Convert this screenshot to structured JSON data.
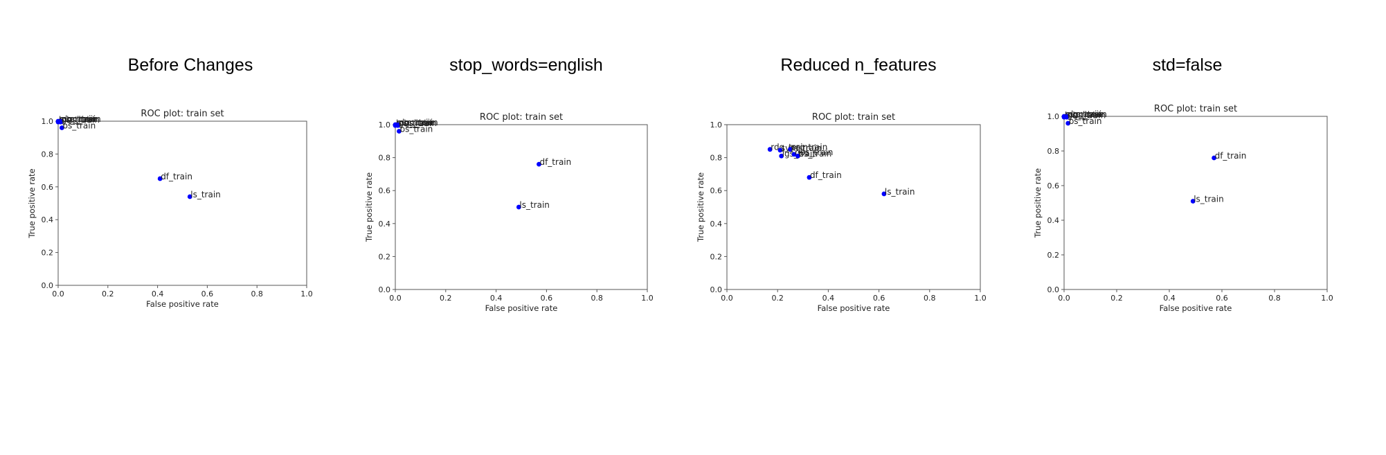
{
  "page": {
    "headings": [
      "Before Changes",
      "stop_words=english",
      "Reduced n_features",
      "std=false"
    ]
  },
  "chart_data": [
    {
      "type": "scatter",
      "heading": "Before Changes",
      "title": "ROC plot: train set",
      "xlabel": "False positive rate",
      "ylabel": "True positive rate",
      "xlim": [
        0,
        1
      ],
      "ylim": [
        0,
        1
      ],
      "xticks": [
        "0.0",
        "0.2",
        "0.4",
        "0.6",
        "0.8",
        "1.0"
      ],
      "yticks": [
        "0.0",
        "0.2",
        "0.4",
        "0.6",
        "0.8",
        "1.0"
      ],
      "grid": false,
      "marker_color": "#0000ff",
      "points": [
        {
          "x": 0.0,
          "y": 1.0,
          "label": "rdg_train"
        },
        {
          "x": 0.005,
          "y": 1.0,
          "label": "svm_train"
        },
        {
          "x": 0.01,
          "y": 1.0,
          "label": "prc_train"
        },
        {
          "x": 0.0,
          "y": 0.995,
          "label": "lgs_train"
        },
        {
          "x": 0.01,
          "y": 0.995,
          "label": "nbs_train"
        },
        {
          "x": 0.015,
          "y": 0.96,
          "label": "bs_train"
        },
        {
          "x": 0.41,
          "y": 0.65,
          "label": "df_train"
        },
        {
          "x": 0.53,
          "y": 0.54,
          "label": "ls_train"
        }
      ]
    },
    {
      "type": "scatter",
      "heading": "stop_words=english",
      "title": "ROC plot: train set",
      "xlabel": "False positive rate",
      "ylabel": "True positive rate",
      "xlim": [
        0,
        1
      ],
      "ylim": [
        0,
        1
      ],
      "xticks": [
        "0.0",
        "0.2",
        "0.4",
        "0.6",
        "0.8",
        "1.0"
      ],
      "yticks": [
        "0.0",
        "0.2",
        "0.4",
        "0.6",
        "0.8",
        "1.0"
      ],
      "grid": false,
      "marker_color": "#0000ff",
      "points": [
        {
          "x": 0.0,
          "y": 1.0,
          "label": "rdg_train"
        },
        {
          "x": 0.005,
          "y": 1.0,
          "label": "svm_train"
        },
        {
          "x": 0.01,
          "y": 1.0,
          "label": "prc_train"
        },
        {
          "x": 0.0,
          "y": 0.995,
          "label": "lgs_train"
        },
        {
          "x": 0.01,
          "y": 0.995,
          "label": "nbs_train"
        },
        {
          "x": 0.015,
          "y": 0.96,
          "label": "bs_train"
        },
        {
          "x": 0.57,
          "y": 0.76,
          "label": "df_train"
        },
        {
          "x": 0.49,
          "y": 0.5,
          "label": "ls_train"
        }
      ]
    },
    {
      "type": "scatter",
      "heading": "Reduced n_features",
      "title": "ROC plot: train set",
      "xlabel": "False positive rate",
      "ylabel": "True positive rate",
      "xlim": [
        0,
        1
      ],
      "ylim": [
        0,
        1
      ],
      "xticks": [
        "0.0",
        "0.2",
        "0.4",
        "0.6",
        "0.8",
        "1.0"
      ],
      "yticks": [
        "0.0",
        "0.2",
        "0.4",
        "0.6",
        "0.8",
        "1.0"
      ],
      "grid": false,
      "marker_color": "#0000ff",
      "points": [
        {
          "x": 0.17,
          "y": 0.85,
          "label": "rdg_train"
        },
        {
          "x": 0.21,
          "y": 0.845,
          "label": "svm_train"
        },
        {
          "x": 0.25,
          "y": 0.85,
          "label": "prc_train"
        },
        {
          "x": 0.215,
          "y": 0.81,
          "label": "lgs_train"
        },
        {
          "x": 0.265,
          "y": 0.82,
          "label": "nbs_train"
        },
        {
          "x": 0.28,
          "y": 0.81,
          "label": "bs_train"
        },
        {
          "x": 0.325,
          "y": 0.68,
          "label": "df_train"
        },
        {
          "x": 0.62,
          "y": 0.58,
          "label": "ls_train"
        }
      ]
    },
    {
      "type": "scatter",
      "heading": "std=false",
      "title": "ROC plot: train set",
      "xlabel": "False positive rate",
      "ylabel": "True positive rate",
      "xlim": [
        0,
        1
      ],
      "ylim": [
        0,
        1
      ],
      "xticks": [
        "0.0",
        "0.2",
        "0.4",
        "0.6",
        "0.8",
        "1.0"
      ],
      "yticks": [
        "0.0",
        "0.2",
        "0.4",
        "0.6",
        "0.8",
        "1.0"
      ],
      "grid": false,
      "marker_color": "#0000ff",
      "points": [
        {
          "x": 0.0,
          "y": 1.0,
          "label": "rdg_train"
        },
        {
          "x": 0.005,
          "y": 1.0,
          "label": "svm_train"
        },
        {
          "x": 0.01,
          "y": 1.0,
          "label": "prc_train"
        },
        {
          "x": 0.0,
          "y": 0.995,
          "label": "lgs_train"
        },
        {
          "x": 0.01,
          "y": 0.995,
          "label": "nbs_train"
        },
        {
          "x": 0.015,
          "y": 0.96,
          "label": "bs_train"
        },
        {
          "x": 0.57,
          "y": 0.76,
          "label": "df_train"
        },
        {
          "x": 0.49,
          "y": 0.51,
          "label": "ls_train"
        }
      ]
    }
  ]
}
